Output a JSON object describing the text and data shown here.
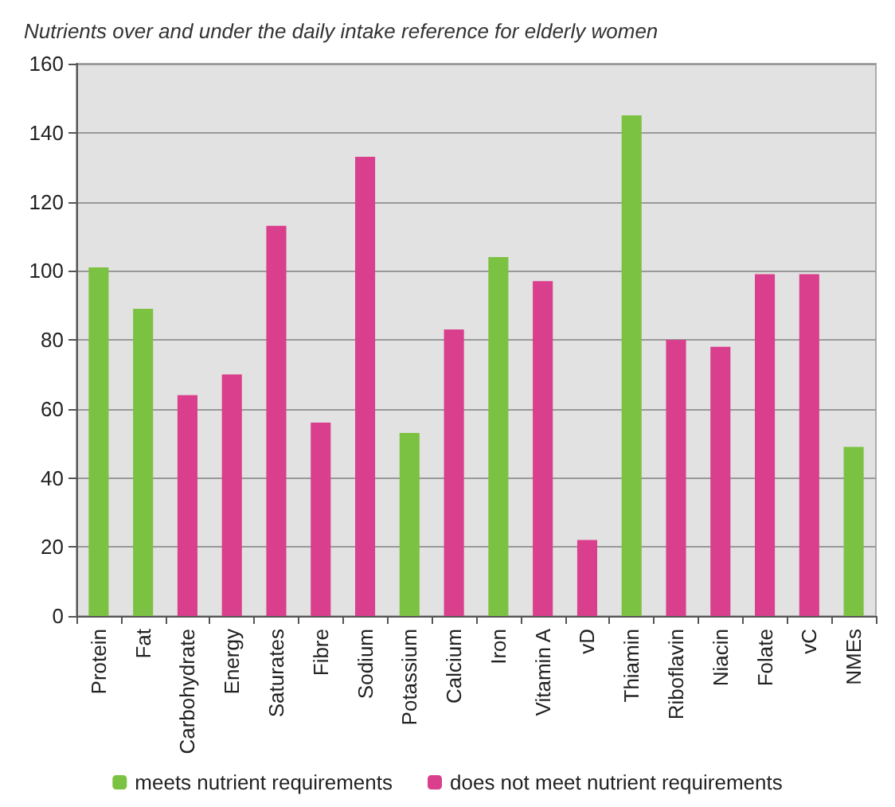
{
  "chart_data": {
    "type": "bar",
    "title": "Nutrients over and under the daily intake reference for elderly women",
    "categories": [
      "Protein",
      "Fat",
      "Carbohydrate",
      "Energy",
      "Saturates",
      "Fibre",
      "Sodium",
      "Potassium",
      "Calcium",
      "Iron",
      "Vitamin A",
      "vD",
      "Thiamin",
      "Riboflavin",
      "Niacin",
      "Folate",
      "vC",
      "NMEs"
    ],
    "series": [
      {
        "name": "meets nutrient requirements",
        "color": "#7cc242",
        "values": [
          101,
          89,
          null,
          null,
          null,
          null,
          null,
          53,
          null,
          104,
          null,
          null,
          145,
          null,
          null,
          null,
          null,
          49
        ]
      },
      {
        "name": "does not meet nutrient requirements",
        "color": "#d93f8c",
        "values": [
          null,
          null,
          64,
          70,
          113,
          56,
          133,
          null,
          83,
          null,
          97,
          22,
          null,
          80,
          78,
          99,
          99,
          null
        ]
      }
    ],
    "ylim": [
      0,
      160
    ],
    "yticks": [
      0,
      20,
      40,
      60,
      80,
      100,
      120,
      140,
      160
    ],
    "grid": "y",
    "legend": "bottom"
  }
}
